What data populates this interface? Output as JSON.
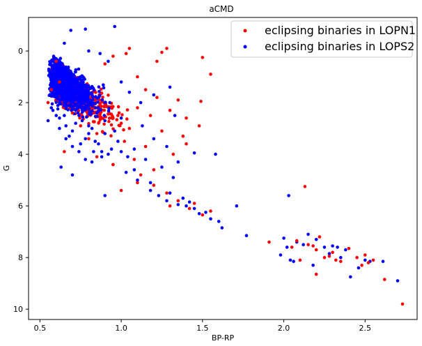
{
  "chart_data": {
    "type": "scatter",
    "title": "aCMD",
    "xlabel": "BP-RP",
    "ylabel": "G",
    "xlim": [
      0.43,
      2.82
    ],
    "ylim": [
      10.4,
      -1.3
    ],
    "y_inverted": true,
    "grid": false,
    "legend_placement": "top-right",
    "x_ticks": [
      0.5,
      1.0,
      1.5,
      2.0,
      2.5
    ],
    "x_tick_labels": [
      "0.5",
      "1.0",
      "1.5",
      "2.0",
      "2.5"
    ],
    "y_ticks": [
      0,
      2,
      4,
      6,
      8,
      10
    ],
    "y_tick_labels": [
      "0",
      "2",
      "4",
      "6",
      "8",
      "10"
    ],
    "series": [
      {
        "name": "eclipsing binaries in LOPN1",
        "color": "#ff0000",
        "points": [
          [
            0.55,
            2.0
          ],
          [
            0.57,
            1.5
          ],
          [
            0.6,
            0.4
          ],
          [
            0.62,
            1.2
          ],
          [
            0.65,
            3.9
          ],
          [
            0.7,
            2.4
          ],
          [
            0.75,
            2.9
          ],
          [
            0.8,
            3.4
          ],
          [
            0.85,
            3.2
          ],
          [
            0.9,
            2.1
          ],
          [
            0.95,
            2.6
          ],
          [
            1.0,
            2.8
          ],
          [
            1.02,
            3.5
          ],
          [
            1.05,
            3.0
          ],
          [
            1.08,
            4.2
          ],
          [
            1.1,
            2.2
          ],
          [
            1.12,
            4.8
          ],
          [
            1.15,
            3.7
          ],
          [
            1.18,
            2.5
          ],
          [
            1.2,
            5.2
          ],
          [
            1.22,
            1.8
          ],
          [
            1.25,
            3.1
          ],
          [
            1.28,
            5.5
          ],
          [
            1.3,
            6.0
          ],
          [
            1.32,
            4.0
          ],
          [
            1.35,
            5.8
          ],
          [
            1.38,
            3.3
          ],
          [
            1.4,
            2.6
          ],
          [
            1.42,
            6.1
          ],
          [
            1.45,
            5.9
          ],
          [
            1.48,
            2.9
          ],
          [
            1.5,
            6.35
          ],
          [
            1.55,
            6.2
          ],
          [
            1.49,
            1.95
          ],
          [
            1.5,
            0.25
          ],
          [
            1.55,
            0.9
          ],
          [
            1.25,
            0.05
          ],
          [
            1.28,
            -0.1
          ],
          [
            1.22,
            0.4
          ],
          [
            1.05,
            -0.1
          ],
          [
            1.03,
            0.1
          ],
          [
            0.95,
            0.2
          ],
          [
            0.9,
            0.5
          ],
          [
            1.1,
            1.0
          ],
          [
            1.15,
            1.5
          ],
          [
            1.35,
            1.9
          ],
          [
            1.4,
            3.6
          ],
          [
            1.3,
            2.3
          ],
          [
            1.2,
            4.6
          ],
          [
            1.1,
            5.1
          ],
          [
            1.0,
            5.4
          ],
          [
            0.95,
            4.4
          ],
          [
            0.85,
            4.1
          ],
          [
            2.13,
            5.25
          ],
          [
            1.91,
            7.4
          ],
          [
            2.05,
            7.6
          ],
          [
            2.08,
            7.35
          ],
          [
            2.1,
            8.1
          ],
          [
            2.15,
            7.5
          ],
          [
            2.2,
            7.7
          ],
          [
            2.22,
            7.2
          ],
          [
            2.25,
            8.0
          ],
          [
            2.3,
            7.8
          ],
          [
            2.32,
            8.1
          ],
          [
            2.35,
            8.15
          ],
          [
            2.4,
            7.65
          ],
          [
            2.45,
            8.0
          ],
          [
            2.48,
            8.3
          ],
          [
            2.5,
            7.9
          ],
          [
            2.52,
            8.2
          ],
          [
            2.2,
            8.65
          ],
          [
            2.62,
            8.85
          ],
          [
            2.73,
            9.8
          ],
          [
            2.55,
            8.1
          ],
          [
            2.18,
            7.55
          ],
          [
            2.28,
            7.95
          ]
        ]
      },
      {
        "name": "eclipsing binaries in LOPS2",
        "color": "#0000ff",
        "points": [
          [
            0.55,
            2.7
          ],
          [
            0.57,
            2.2
          ],
          [
            0.6,
            1.8
          ],
          [
            0.62,
            3.0
          ],
          [
            0.65,
            2.5
          ],
          [
            0.68,
            3.3
          ],
          [
            0.7,
            1.4
          ],
          [
            0.72,
            2.8
          ],
          [
            0.75,
            3.6
          ],
          [
            0.78,
            2.1
          ],
          [
            0.8,
            2.9
          ],
          [
            0.83,
            3.9
          ],
          [
            0.85,
            2.4
          ],
          [
            0.88,
            4.1
          ],
          [
            0.9,
            3.2
          ],
          [
            0.93,
            2.0
          ],
          [
            0.95,
            4.4
          ],
          [
            0.98,
            3.5
          ],
          [
            1.0,
            2.6
          ],
          [
            1.03,
            4.7
          ],
          [
            1.05,
            1.6
          ],
          [
            1.08,
            3.8
          ],
          [
            1.1,
            5.0
          ],
          [
            1.13,
            2.9
          ],
          [
            1.15,
            4.2
          ],
          [
            1.18,
            5.4
          ],
          [
            1.2,
            3.4
          ],
          [
            1.23,
            5.6
          ],
          [
            1.25,
            4.5
          ],
          [
            1.28,
            5.8
          ],
          [
            1.3,
            5.5
          ],
          [
            1.32,
            4.9
          ],
          [
            1.35,
            5.95
          ],
          [
            1.38,
            5.7
          ],
          [
            1.4,
            6.0
          ],
          [
            1.42,
            5.85
          ],
          [
            1.45,
            6.1
          ],
          [
            1.48,
            6.3
          ],
          [
            1.52,
            6.25
          ],
          [
            1.55,
            6.5
          ],
          [
            1.6,
            6.6
          ],
          [
            1.62,
            6.85
          ],
          [
            1.71,
            6.0
          ],
          [
            1.77,
            7.15
          ],
          [
            1.58,
            4.0
          ],
          [
            1.45,
            3.95
          ],
          [
            0.59,
            0.75
          ],
          [
            0.6,
            0.3
          ],
          [
            0.65,
            -0.3
          ],
          [
            0.69,
            -0.8
          ],
          [
            0.78,
            -0.85
          ],
          [
            0.96,
            -0.95
          ],
          [
            0.8,
            0.0
          ],
          [
            0.92,
            0.4
          ],
          [
            0.87,
            0.1
          ],
          [
            0.63,
            4.5
          ],
          [
            0.7,
            4.8
          ],
          [
            0.9,
            5.6
          ],
          [
            0.75,
            1.0
          ],
          [
            1.0,
            1.2
          ],
          [
            1.12,
            2.0
          ],
          [
            1.2,
            1.7
          ],
          [
            1.3,
            1.4
          ],
          [
            1.33,
            2.5
          ],
          [
            1.28,
            3.7
          ],
          [
            1.35,
            4.3
          ],
          [
            1.18,
            5.1
          ],
          [
            2.03,
            5.6
          ],
          [
            1.98,
            7.9
          ],
          [
            2.0,
            7.25
          ],
          [
            2.02,
            7.6
          ],
          [
            2.04,
            8.1
          ],
          [
            2.06,
            8.15
          ],
          [
            2.08,
            7.4
          ],
          [
            2.12,
            7.5
          ],
          [
            2.15,
            7.1
          ],
          [
            2.18,
            8.3
          ],
          [
            2.25,
            7.6
          ],
          [
            2.28,
            7.85
          ],
          [
            2.3,
            7.55
          ],
          [
            2.33,
            7.6
          ],
          [
            2.38,
            7.7
          ],
          [
            2.41,
            8.75
          ],
          [
            2.46,
            8.4
          ],
          [
            2.5,
            8.1
          ],
          [
            2.53,
            8.15
          ],
          [
            2.61,
            8.15
          ],
          [
            2.7,
            8.9
          ],
          [
            2.2,
            7.3
          ],
          [
            2.35,
            8.0
          ]
        ],
        "dense_cluster": {
          "center": [
            0.72,
            2.8
          ],
          "note_points": [
            [
              0.58,
              2.3
            ],
            [
              0.62,
              2.6
            ],
            [
              0.66,
              2.9
            ],
            [
              0.7,
              3.1
            ],
            [
              0.74,
              2.5
            ],
            [
              0.78,
              3.4
            ],
            [
              0.82,
              3.0
            ],
            [
              0.86,
              3.6
            ],
            [
              0.9,
              2.7
            ],
            [
              0.94,
              3.8
            ],
            [
              0.64,
              1.9
            ],
            [
              0.68,
              2.1
            ],
            [
              0.72,
              2.3
            ],
            [
              0.76,
              2.7
            ],
            [
              0.8,
              3.2
            ],
            [
              0.84,
              3.5
            ],
            [
              0.88,
              3.9
            ],
            [
              0.92,
              4.0
            ],
            [
              0.6,
              2.5
            ],
            [
              0.66,
              3.4
            ],
            [
              0.7,
              3.7
            ],
            [
              0.74,
              3.9
            ],
            [
              0.78,
              4.2
            ],
            [
              0.82,
              4.3
            ],
            [
              0.86,
              2.2
            ],
            [
              0.9,
              2.0
            ],
            [
              0.96,
              3.1
            ],
            [
              1.0,
              3.9
            ],
            [
              1.04,
              4.1
            ],
            [
              1.08,
              4.6
            ]
          ]
        }
      }
    ]
  }
}
